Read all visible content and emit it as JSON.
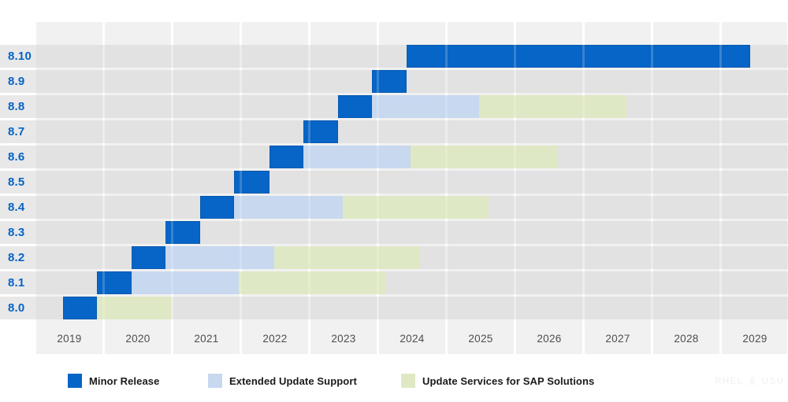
{
  "chart_data": {
    "type": "bar",
    "subtype": "gantt-lifecycle-timeline",
    "title": "",
    "x_axis": {
      "unit": "year",
      "tick_labels": [
        "2019",
        "2020",
        "2021",
        "2022",
        "2023",
        "2024",
        "2025",
        "2026",
        "2027",
        "2028",
        "2029"
      ],
      "range": [
        2019,
        2030
      ],
      "grid": "shaded-columns"
    },
    "y_axis": {
      "categories": [
        "8.10",
        "8.9",
        "8.8",
        "8.7",
        "8.6",
        "8.5",
        "8.4",
        "8.3",
        "8.2",
        "8.1",
        "8.0"
      ],
      "label_color": "#0663c5"
    },
    "phases": [
      {
        "id": "minor",
        "label": "Minor Release",
        "color": "#0665c6"
      },
      {
        "id": "eus",
        "label": "Extended Update Support",
        "color": "#c7d8ef"
      },
      {
        "id": "us_sap",
        "label": "Update Services for SAP Solutions",
        "color": "#dfe8c4"
      }
    ],
    "rows": [
      {
        "version": "8.10",
        "segments": [
          {
            "phase": "minor",
            "start": 2024.4,
            "end": 2029.41
          }
        ]
      },
      {
        "version": "8.9",
        "segments": [
          {
            "phase": "minor",
            "start": 2023.9,
            "end": 2024.4
          }
        ]
      },
      {
        "version": "8.8",
        "segments": [
          {
            "phase": "minor",
            "start": 2023.4,
            "end": 2023.9
          },
          {
            "phase": "eus",
            "start": 2023.9,
            "end": 2025.46
          },
          {
            "phase": "us_sap",
            "start": 2025.46,
            "end": 2027.61
          }
        ]
      },
      {
        "version": "8.7",
        "segments": [
          {
            "phase": "minor",
            "start": 2022.9,
            "end": 2023.4
          }
        ]
      },
      {
        "version": "8.6",
        "segments": [
          {
            "phase": "minor",
            "start": 2022.4,
            "end": 2022.9
          },
          {
            "phase": "eus",
            "start": 2022.9,
            "end": 2024.46
          },
          {
            "phase": "us_sap",
            "start": 2024.46,
            "end": 2026.61
          }
        ]
      },
      {
        "version": "8.5",
        "segments": [
          {
            "phase": "minor",
            "start": 2021.89,
            "end": 2022.4
          }
        ]
      },
      {
        "version": "8.4",
        "segments": [
          {
            "phase": "minor",
            "start": 2021.39,
            "end": 2021.89
          },
          {
            "phase": "eus",
            "start": 2021.89,
            "end": 2023.47
          },
          {
            "phase": "us_sap",
            "start": 2023.47,
            "end": 2025.6
          }
        ]
      },
      {
        "version": "8.3",
        "segments": [
          {
            "phase": "minor",
            "start": 2020.89,
            "end": 2021.39
          }
        ]
      },
      {
        "version": "8.2",
        "segments": [
          {
            "phase": "minor",
            "start": 2020.39,
            "end": 2020.89
          },
          {
            "phase": "eus",
            "start": 2020.89,
            "end": 2022.47
          },
          {
            "phase": "us_sap",
            "start": 2022.47,
            "end": 2024.6
          }
        ]
      },
      {
        "version": "8.1",
        "segments": [
          {
            "phase": "minor",
            "start": 2019.89,
            "end": 2020.39
          },
          {
            "phase": "eus",
            "start": 2020.39,
            "end": 2021.95
          },
          {
            "phase": "us_sap",
            "start": 2021.95,
            "end": 2024.1
          }
        ]
      },
      {
        "version": "8.0",
        "segments": [
          {
            "phase": "minor",
            "start": 2019.39,
            "end": 2019.89
          },
          {
            "phase": "us_sap",
            "start": 2019.89,
            "end": 2020.96
          }
        ]
      }
    ],
    "legend_position": "bottom",
    "colors": {
      "column_fill": "#f1f1f1",
      "row_band_overlay": "rgba(213,213,213,0.55)",
      "axis_tick_text": "#4d4d4d",
      "legend_text": "#1a1a1a",
      "background": "#ffffff"
    }
  },
  "watermark": {
    "text": "RHEL_8_USU"
  }
}
